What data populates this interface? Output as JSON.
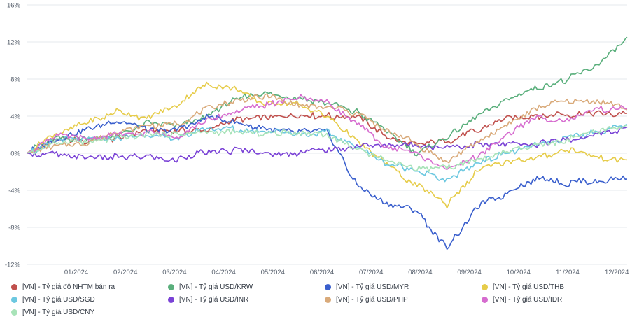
{
  "chart_data": {
    "type": "line",
    "x_ticks": [
      "01/2024",
      "02/2024",
      "03/2024",
      "04/2024",
      "05/2024",
      "06/2024",
      "07/2024",
      "08/2024",
      "09/2024",
      "10/2024",
      "11/2024",
      "12/2024"
    ],
    "y_ticks": [
      "16%",
      "12%",
      "8%",
      "4%",
      "0%",
      "-4%",
      "-8%",
      "-12%"
    ],
    "ylim": [
      -12,
      16
    ],
    "y_unit": "%",
    "grid": "horizontal",
    "legend_position": "bottom",
    "series": [
      {
        "name": "[VN] - Tỷ giá đô NHTM bán ra",
        "color": "#c0504d",
        "values": [
          [
            11.5,
            0
          ],
          [
            12.5,
            1.5
          ],
          [
            13.5,
            1.3
          ],
          [
            14.5,
            1.6
          ],
          [
            15.5,
            2.4
          ],
          [
            16.5,
            2.3
          ],
          [
            17.5,
            2.6
          ],
          [
            18.5,
            3.6
          ],
          [
            19.5,
            4.0
          ],
          [
            20.5,
            4.1
          ],
          [
            21.5,
            4.0
          ],
          [
            22.5,
            4.0
          ],
          [
            23.5,
            1.9
          ],
          [
            24.5,
            0.9
          ],
          [
            25.5,
            1.3
          ],
          [
            26.5,
            2.4
          ],
          [
            27.5,
            3.8
          ],
          [
            28.5,
            4.1
          ],
          [
            29.5,
            4.2
          ],
          [
            30.5,
            4.2
          ],
          [
            31.5,
            4.3
          ]
        ]
      },
      {
        "name": "[VN] - Tỷ giá USD/KRW",
        "color": "#5aaf7c",
        "values": [
          [
            11.5,
            0
          ],
          [
            12.5,
            1.8
          ],
          [
            13.5,
            1.5
          ],
          [
            14.5,
            1.9
          ],
          [
            15.5,
            3.3
          ],
          [
            16.5,
            2.8
          ],
          [
            17.5,
            3.9
          ],
          [
            18.5,
            5.9
          ],
          [
            19.5,
            6.4
          ],
          [
            20.5,
            6.0
          ],
          [
            21.5,
            5.5
          ],
          [
            22.5,
            4.4
          ],
          [
            23.5,
            2.4
          ],
          [
            24.5,
            -0.1
          ],
          [
            25.5,
            1.6
          ],
          [
            26.5,
            4.0
          ],
          [
            27.5,
            5.8
          ],
          [
            28.5,
            7.0
          ],
          [
            29.5,
            7.9
          ],
          [
            30.5,
            9.5
          ],
          [
            31.5,
            12.5
          ]
        ]
      },
      {
        "name": "[VN] - Tỷ giá USD/MYR",
        "color": "#3a5fcd",
        "values": [
          [
            11.5,
            0
          ],
          [
            12.5,
            1.5
          ],
          [
            13.5,
            2.6
          ],
          [
            14.5,
            3.5
          ],
          [
            15.5,
            2.5
          ],
          [
            16.5,
            2.6
          ],
          [
            17.5,
            3.9
          ],
          [
            18.5,
            3.3
          ],
          [
            19.5,
            2.6
          ],
          [
            20.5,
            2.2
          ],
          [
            21.5,
            2.4
          ],
          [
            22.5,
            -3.5
          ],
          [
            23.5,
            -5.6
          ],
          [
            24.5,
            -6.2
          ],
          [
            25.5,
            -10.3
          ],
          [
            26.5,
            -5.8
          ],
          [
            27.5,
            -4.3
          ],
          [
            28.5,
            -2.6
          ],
          [
            29.5,
            -3.3
          ],
          [
            30.5,
            -2.9
          ],
          [
            31.5,
            -2.8
          ]
        ]
      },
      {
        "name": "[VN] - Tỷ giá USD/THB",
        "color": "#e6cc4a",
        "values": [
          [
            11.5,
            0
          ],
          [
            12.5,
            2.1
          ],
          [
            13.5,
            3.3
          ],
          [
            14.5,
            4.5
          ],
          [
            15.5,
            3.7
          ],
          [
            16.5,
            5.2
          ],
          [
            17.5,
            7.5
          ],
          [
            18.5,
            6.8
          ],
          [
            19.5,
            5.3
          ],
          [
            20.5,
            5.3
          ],
          [
            21.5,
            3.9
          ],
          [
            22.5,
            1.4
          ],
          [
            23.5,
            -1.3
          ],
          [
            24.5,
            -3.5
          ],
          [
            25.5,
            -5.5
          ],
          [
            26.5,
            -2.0
          ],
          [
            27.5,
            -0.8
          ],
          [
            28.5,
            -0.6
          ],
          [
            29.5,
            0.5
          ],
          [
            30.5,
            -0.6
          ],
          [
            31.5,
            -0.7
          ]
        ]
      },
      {
        "name": "[VN] - Tỷ giá USD/SGD",
        "color": "#6cc8e0",
        "values": [
          [
            11.5,
            0
          ],
          [
            12.5,
            1.4
          ],
          [
            13.5,
            1.4
          ],
          [
            14.5,
            1.6
          ],
          [
            15.5,
            1.9
          ],
          [
            16.5,
            1.5
          ],
          [
            17.5,
            2.9
          ],
          [
            18.5,
            2.5
          ],
          [
            19.5,
            2.4
          ],
          [
            20.5,
            2.0
          ],
          [
            21.5,
            2.2
          ],
          [
            22.5,
            0.7
          ],
          [
            23.5,
            -1.3
          ],
          [
            24.5,
            -1.8
          ],
          [
            25.5,
            -3.0
          ],
          [
            26.5,
            -0.9
          ],
          [
            27.5,
            -0.1
          ],
          [
            28.5,
            0.8
          ],
          [
            29.5,
            1.7
          ],
          [
            30.5,
            2.3
          ],
          [
            31.5,
            3.1
          ]
        ]
      },
      {
        "name": "[VN] - Tỷ giá USD/INR",
        "color": "#7a42d6",
        "values": [
          [
            11.5,
            0
          ],
          [
            12.5,
            -0.2
          ],
          [
            13.5,
            -0.3
          ],
          [
            14.5,
            -0.4
          ],
          [
            15.5,
            -0.3
          ],
          [
            16.5,
            -0.7
          ],
          [
            17.5,
            0.2
          ],
          [
            18.5,
            0.3
          ],
          [
            19.5,
            0.0
          ],
          [
            20.5,
            0.0
          ],
          [
            21.5,
            0.4
          ],
          [
            22.5,
            0.7
          ],
          [
            23.5,
            0.9
          ],
          [
            24.5,
            0.8
          ],
          [
            25.5,
            0.7
          ],
          [
            26.5,
            0.9
          ],
          [
            27.5,
            0.9
          ],
          [
            28.5,
            1.0
          ],
          [
            29.5,
            1.4
          ],
          [
            30.5,
            2.0
          ],
          [
            31.5,
            2.8
          ]
        ]
      },
      {
        "name": "[VN] - Tỷ giá USD/PHP",
        "color": "#d9aa7a",
        "values": [
          [
            11.5,
            0
          ],
          [
            12.5,
            0.8
          ],
          [
            13.5,
            1.2
          ],
          [
            14.5,
            2.5
          ],
          [
            15.5,
            2.9
          ],
          [
            16.5,
            3.2
          ],
          [
            17.5,
            4.7
          ],
          [
            18.5,
            5.8
          ],
          [
            19.5,
            6.2
          ],
          [
            20.5,
            5.2
          ],
          [
            21.5,
            5.1
          ],
          [
            22.5,
            4.3
          ],
          [
            23.5,
            2.4
          ],
          [
            24.5,
            1.0
          ],
          [
            25.5,
            -0.9
          ],
          [
            26.5,
            1.0
          ],
          [
            27.5,
            3.2
          ],
          [
            28.5,
            4.8
          ],
          [
            29.5,
            5.7
          ],
          [
            30.5,
            5.6
          ],
          [
            31.5,
            4.7
          ]
        ]
      },
      {
        "name": "[VN] - Tỷ giá USD/IDR",
        "color": "#d66ccf",
        "values": [
          [
            11.5,
            0
          ],
          [
            12.5,
            1.9
          ],
          [
            13.5,
            1.6
          ],
          [
            14.5,
            2.0
          ],
          [
            15.5,
            2.3
          ],
          [
            16.5,
            1.9
          ],
          [
            17.5,
            3.5
          ],
          [
            18.5,
            4.5
          ],
          [
            19.5,
            5.3
          ],
          [
            20.5,
            6.0
          ],
          [
            21.5,
            5.5
          ],
          [
            22.5,
            3.3
          ],
          [
            23.5,
            0.7
          ],
          [
            24.5,
            0.0
          ],
          [
            25.5,
            -1.8
          ],
          [
            26.5,
            -0.3
          ],
          [
            27.5,
            2.1
          ],
          [
            28.5,
            3.8
          ],
          [
            29.5,
            3.6
          ],
          [
            30.5,
            4.7
          ],
          [
            31.5,
            4.8
          ]
        ]
      },
      {
        "name": "[VN] - Tỷ giá USD/CNY",
        "color": "#a8e3b8",
        "values": [
          [
            11.5,
            0
          ],
          [
            12.5,
            1.2
          ],
          [
            13.5,
            1.3
          ],
          [
            14.5,
            1.6
          ],
          [
            15.5,
            2.0
          ],
          [
            16.5,
            1.9
          ],
          [
            17.5,
            2.3
          ],
          [
            18.5,
            2.2
          ],
          [
            19.5,
            2.1
          ],
          [
            20.5,
            2.2
          ],
          [
            21.5,
            2.1
          ],
          [
            22.5,
            0.5
          ],
          [
            23.5,
            -0.8
          ],
          [
            24.5,
            -1.6
          ],
          [
            25.5,
            -1.5
          ],
          [
            26.5,
            -0.6
          ],
          [
            27.5,
            0.1
          ],
          [
            28.5,
            0.8
          ],
          [
            29.5,
            1.5
          ],
          [
            30.5,
            2.3
          ],
          [
            31.5,
            3.0
          ]
        ]
      }
    ]
  }
}
